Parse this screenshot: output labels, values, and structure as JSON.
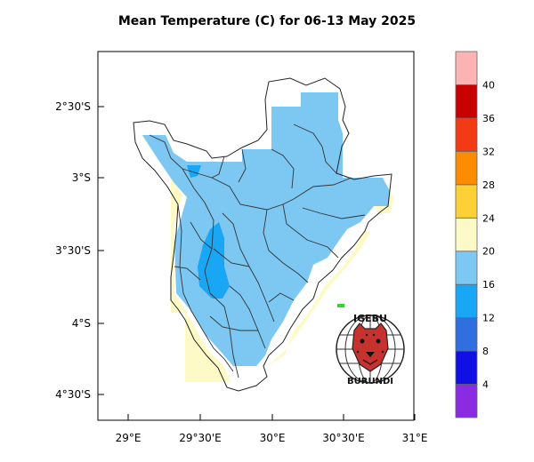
{
  "title": "Mean Temperature (C) for 06-13 May 2025",
  "axes": {
    "x_ticks": [
      "29°E",
      "29°30'E",
      "30°E",
      "30°30'E",
      "31°E"
    ],
    "y_ticks": [
      "2°30'S",
      "3°S",
      "3°30'S",
      "4°S",
      "4°30'S"
    ]
  },
  "colorbar": {
    "labels": [
      "4",
      "8",
      "12",
      "16",
      "20",
      "24",
      "28",
      "32",
      "36",
      "40"
    ],
    "colors": [
      "#8a2be2",
      "#1010e6",
      "#2f6fe0",
      "#19a6f4",
      "#7cc8f2",
      "#fdfac8",
      "#fdd135",
      "#fb8c00",
      "#f23b14",
      "#c70000",
      "#fbb3b3"
    ]
  },
  "logo": {
    "top_text": "IGEBU",
    "bottom_text": "BURUNDI",
    "icon": "leopard-head-icon"
  }
}
